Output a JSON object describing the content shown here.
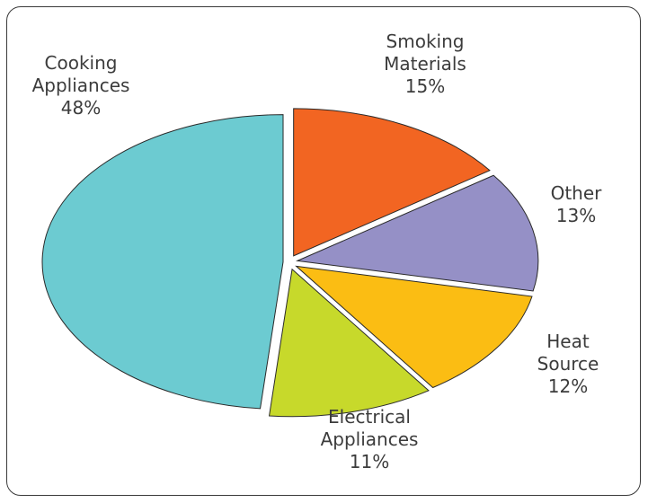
{
  "chart_data": {
    "type": "pie",
    "title": "",
    "slices": [
      {
        "label_lines": [
          "Smoking",
          "Materials"
        ],
        "value": 15,
        "value_label": "15%",
        "color": "#f26522"
      },
      {
        "label_lines": [
          "Other"
        ],
        "value": 13,
        "value_label": "13%",
        "color": "#9590c6"
      },
      {
        "label_lines": [
          "Heat",
          "Source"
        ],
        "value": 12,
        "value_label": "12%",
        "color": "#fbbd13"
      },
      {
        "label_lines": [
          "Electrical",
          "Appliances"
        ],
        "value": 11,
        "value_label": "11%",
        "color": "#c7d92b"
      },
      {
        "label_lines": [
          "Cooking",
          "Appliances"
        ],
        "value": 48,
        "value_label": "48%",
        "color": "#6ccbd1"
      }
    ],
    "start_angle_deg": 0,
    "direction": "clockwise",
    "exploded": true
  }
}
